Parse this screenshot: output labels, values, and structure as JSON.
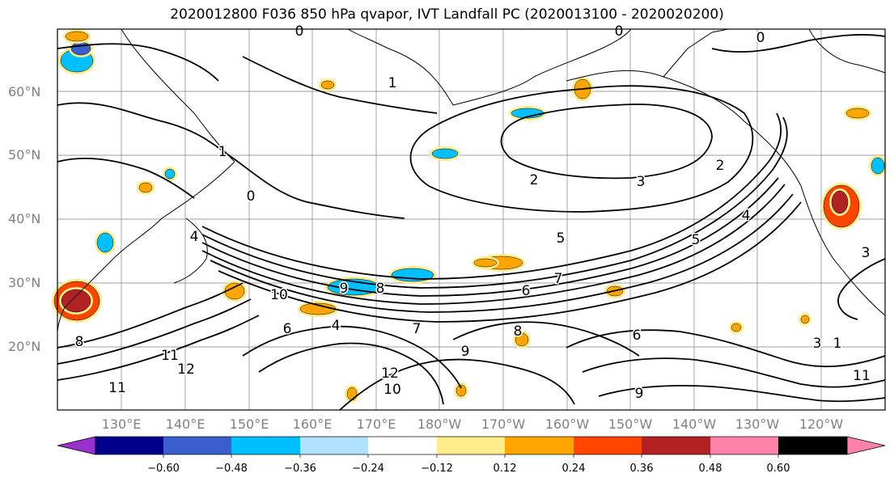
{
  "title": "2020012800 F036 850 hPa qvapor, IVT Landfall PC (2020013100 - 2020020200)",
  "lat_labels": [
    "60°N",
    "50°N",
    "40°N",
    "30°N",
    "20°N"
  ],
  "lon_labels": [
    "130°E",
    "140°E",
    "150°E",
    "160°E",
    "170°E",
    "180°W",
    "170°W",
    "160°W",
    "150°W",
    "140°W",
    "130°W",
    "120°W"
  ],
  "colorbar": {
    "colors": [
      "#9932cc",
      "#00008b",
      "#3a5fcd",
      "#00bfff",
      "#b0e2ff",
      "#ffffff",
      "#ffec8b",
      "#ffa500",
      "#ff4500",
      "#b22222",
      "#ff82ab"
    ],
    "tick_labels": [
      "−0.60",
      "−0.48",
      "−0.36",
      "−0.24",
      "−0.12",
      "0.12",
      "0.24",
      "0.36",
      "0.48",
      "0.60"
    ]
  },
  "contour_labels": [
    "0",
    "1",
    "2",
    "3",
    "4",
    "5",
    "6",
    "7",
    "8",
    "9",
    "10",
    "11",
    "12"
  ],
  "colors": {
    "axis_label": "#808080",
    "contour": "#000000",
    "grid": "#7f7f7f"
  }
}
